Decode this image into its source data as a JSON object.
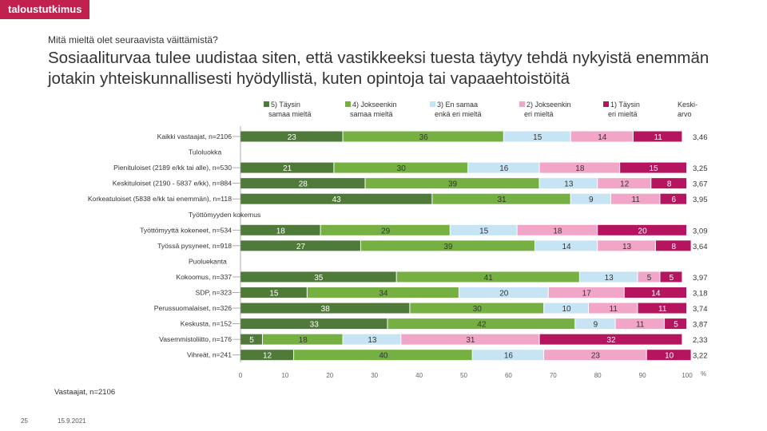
{
  "brand": "taloustutkimus",
  "question": "Mitä mieltä olet seuraavista väittämistä?",
  "title": "Sosiaaliturvaa tulee uudistaa siten, että vastikkeeksi tuesta täytyy tehdä nykyistä enemmän jotakin yhteiskunnallisesti hyödyllistä, kuten opintoja tai vapaaehtoistöitä",
  "footer_note": "Vastaajat, n=2106",
  "page_number": "25",
  "date": "15.9.2021",
  "colors": {
    "brand": "#c0214e",
    "s5": "#4f7a3a",
    "s4": "#76b043",
    "s3": "#c6e4f4",
    "s2": "#f1a6c8",
    "s1": "#b5155e"
  },
  "chart_data": {
    "type": "bar",
    "orientation": "horizontal-stacked-100",
    "series": [
      {
        "key": "s5",
        "name": "5) Täysin samaa mieltä"
      },
      {
        "key": "s4",
        "name": "4) Jokseenkin samaa mieltä"
      },
      {
        "key": "s3",
        "name": "3) En samaa enkä eri mieltä"
      },
      {
        "key": "s2",
        "name": "2) Jokseenkin eri mieltä"
      },
      {
        "key": "s1",
        "name": "1) Täysin eri mieltä"
      }
    ],
    "mean_header": "Keski-arvo",
    "rows": [
      {
        "kind": "bar",
        "label": "Kaikki vastaajat, n=2106",
        "values": [
          23,
          36,
          15,
          14,
          11
        ],
        "mean": "3,46"
      },
      {
        "kind": "group",
        "label": "Tuloluokka"
      },
      {
        "kind": "bar",
        "label": "Pienituloiset (2189 e/kk tai alle), n=530",
        "values": [
          21,
          30,
          16,
          18,
          15
        ],
        "mean": "3,25"
      },
      {
        "kind": "bar",
        "label": "Keskituloiset (2190 - 5837 e/kk), n=884",
        "values": [
          28,
          39,
          13,
          12,
          8
        ],
        "mean": "3,67"
      },
      {
        "kind": "bar",
        "label": "Korkeatuloiset (5838 e/kk tai enemmän), n=118",
        "values": [
          43,
          31,
          9,
          11,
          6
        ],
        "mean": "3,95"
      },
      {
        "kind": "group",
        "label": "Työttömyyden kokemus"
      },
      {
        "kind": "bar",
        "label": "Työttömyyttä kokeneet, n=534",
        "values": [
          18,
          29,
          15,
          18,
          20
        ],
        "mean": "3,09"
      },
      {
        "kind": "bar",
        "label": "Työssä pysyneet, n=918",
        "values": [
          27,
          39,
          14,
          13,
          8
        ],
        "mean": "3,64"
      },
      {
        "kind": "group",
        "label": "Puoluekanta"
      },
      {
        "kind": "bar",
        "label": "Kokoomus, n=337",
        "values": [
          35,
          41,
          13,
          5,
          5
        ],
        "mean": "3,97"
      },
      {
        "kind": "bar",
        "label": "SDP, n=323",
        "values": [
          15,
          34,
          20,
          17,
          14
        ],
        "mean": "3,18"
      },
      {
        "kind": "bar",
        "label": "Perussuomalaiset, n=326",
        "values": [
          38,
          30,
          10,
          11,
          11
        ],
        "mean": "3,74"
      },
      {
        "kind": "bar",
        "label": "Keskusta, n=152",
        "values": [
          33,
          42,
          9,
          11,
          5
        ],
        "mean": "3,87"
      },
      {
        "kind": "bar",
        "label": "Vasemmistoliitto, n=176",
        "values": [
          5,
          18,
          13,
          31,
          32
        ],
        "mean": "2,33"
      },
      {
        "kind": "bar",
        "label": "Vihreät, n=241",
        "values": [
          12,
          40,
          16,
          23,
          10
        ],
        "mean": "3,22"
      }
    ],
    "x_ticks": [
      0,
      10,
      20,
      30,
      40,
      50,
      60,
      70,
      80,
      90,
      100
    ],
    "xlim": [
      0,
      100
    ],
    "x_unit": "%",
    "legend_position": "top"
  }
}
